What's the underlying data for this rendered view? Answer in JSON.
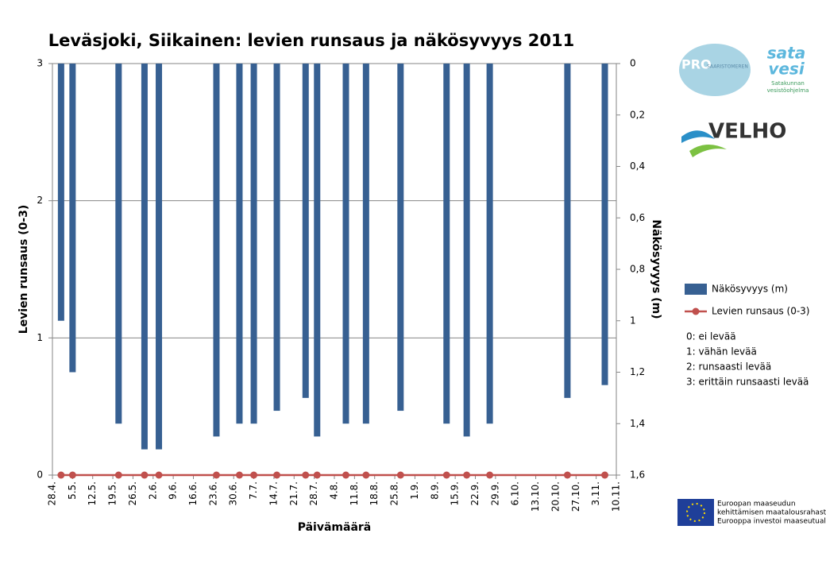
{
  "chart_data": {
    "type": "bar-line",
    "title": "Leväsjoki, Siikainen: levien runsaus ja näkösyvyys 2011",
    "x_label": "Päivämäärä",
    "y_label": "Levien runsaus (0-3)",
    "y2_label": "Näkösyvyys (m)",
    "x": [
      "1.5.",
      "5.5.",
      "21.5.",
      "30.5.",
      "4.6.",
      "24.6.",
      "2.7.",
      "7.7.",
      "15.7.",
      "25.7.",
      "29.7.",
      "8.8.",
      "15.8.",
      "27.8.",
      "12.9.",
      "19.9.",
      "27.9.",
      "24.10.",
      "6.11."
    ],
    "series": [
      {
        "name": "Näkösyvyys (m)",
        "type": "bar",
        "axis": "y2",
        "color": "#376092",
        "values": [
          1.0,
          1.2,
          1.4,
          1.5,
          1.5,
          1.45,
          1.4,
          1.4,
          1.35,
          1.3,
          1.45,
          1.4,
          1.4,
          1.35,
          1.4,
          1.45,
          1.4,
          1.3,
          1.25
        ]
      },
      {
        "name": "Levien runsaus (0-3)",
        "type": "line",
        "axis": "y",
        "color": "#c0504d",
        "values": [
          0,
          0,
          0,
          0,
          0,
          0,
          0,
          0,
          0,
          0,
          0,
          0,
          0,
          0,
          0,
          0,
          0,
          0,
          0
        ]
      }
    ],
    "xlim": [
      "28.4.",
      "10.11."
    ],
    "xticks": [
      "28.4.",
      "5.5.",
      "12.5.",
      "19.5.",
      "26.5.",
      "2.6.",
      "9.6.",
      "16.6.",
      "23.6.",
      "30.6.",
      "7.7.",
      "14.7.",
      "21.7.",
      "28.7.",
      "4.8.",
      "11.8.",
      "18.8.",
      "25.8.",
      "1.9.",
      "8.9.",
      "15.9.",
      "22.9.",
      "29.9.",
      "6.10.",
      "13.10.",
      "20.10.",
      "27.10.",
      "3.11.",
      "10.11."
    ],
    "ylim": [
      0,
      3
    ],
    "yticks": [
      0,
      1,
      2,
      3
    ],
    "y2lim": [
      1.6,
      0
    ],
    "y2ticks": [
      0,
      {
        "value": 0.2,
        "label": "0,2"
      },
      {
        "value": 0.4,
        "label": "0,4"
      },
      {
        "value": 0.6,
        "label": "0,6"
      },
      {
        "value": 0.8,
        "label": "0,8"
      },
      1,
      {
        "value": 1.2,
        "label": "1,2"
      },
      {
        "value": 1.4,
        "label": "1,4"
      },
      {
        "value": 1.6,
        "label": "1,6"
      }
    ],
    "grid": true,
    "legend": "right",
    "notes": [
      "0: ei levää",
      "1: vähän levää",
      "2: runsaasti levää",
      "3: erittäin runsaasti levää"
    ]
  },
  "logos": {
    "pro": "PRO",
    "pro_sub": "SAARISTOMEREN",
    "satavesi": [
      "sata",
      "vesi"
    ],
    "satavesi_sub": [
      "Satakunnan",
      "vesistöohjelma"
    ],
    "velho": "VELHO",
    "eu": [
      "Euroopan maaseudun",
      "kehittämisen maatalousrahasto:",
      "Eurooppa investoi maaseutualueisiin"
    ]
  }
}
